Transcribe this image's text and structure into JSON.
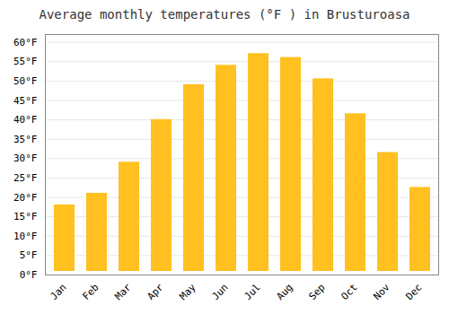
{
  "chart_data": {
    "type": "bar",
    "title": "Average monthly temperatures (°F ) in Brusturoasa",
    "categories": [
      "Jan",
      "Feb",
      "Mar",
      "Apr",
      "May",
      "Jun",
      "Jul",
      "Aug",
      "Sep",
      "Oct",
      "Nov",
      "Dec"
    ],
    "values": [
      19,
      22,
      30,
      41,
      50,
      55,
      58,
      57,
      51.5,
      42.5,
      32.5,
      23.5
    ],
    "color": "#FFC020",
    "ylim": [
      0,
      62
    ],
    "yticks": [
      {
        "value": 0,
        "label": "0°F"
      },
      {
        "value": 5,
        "label": "5°F"
      },
      {
        "value": 10,
        "label": "10°F"
      },
      {
        "value": 15,
        "label": "15°F"
      },
      {
        "value": 20,
        "label": "20°F"
      },
      {
        "value": 25,
        "label": "25°F"
      },
      {
        "value": 30,
        "label": "30°F"
      },
      {
        "value": 35,
        "label": "35°F"
      },
      {
        "value": 40,
        "label": "40°F"
      },
      {
        "value": 45,
        "label": "45°F"
      },
      {
        "value": 50,
        "label": "50°F"
      },
      {
        "value": 55,
        "label": "55°F"
      },
      {
        "value": 60,
        "label": "60°F"
      }
    ],
    "grid": true
  }
}
